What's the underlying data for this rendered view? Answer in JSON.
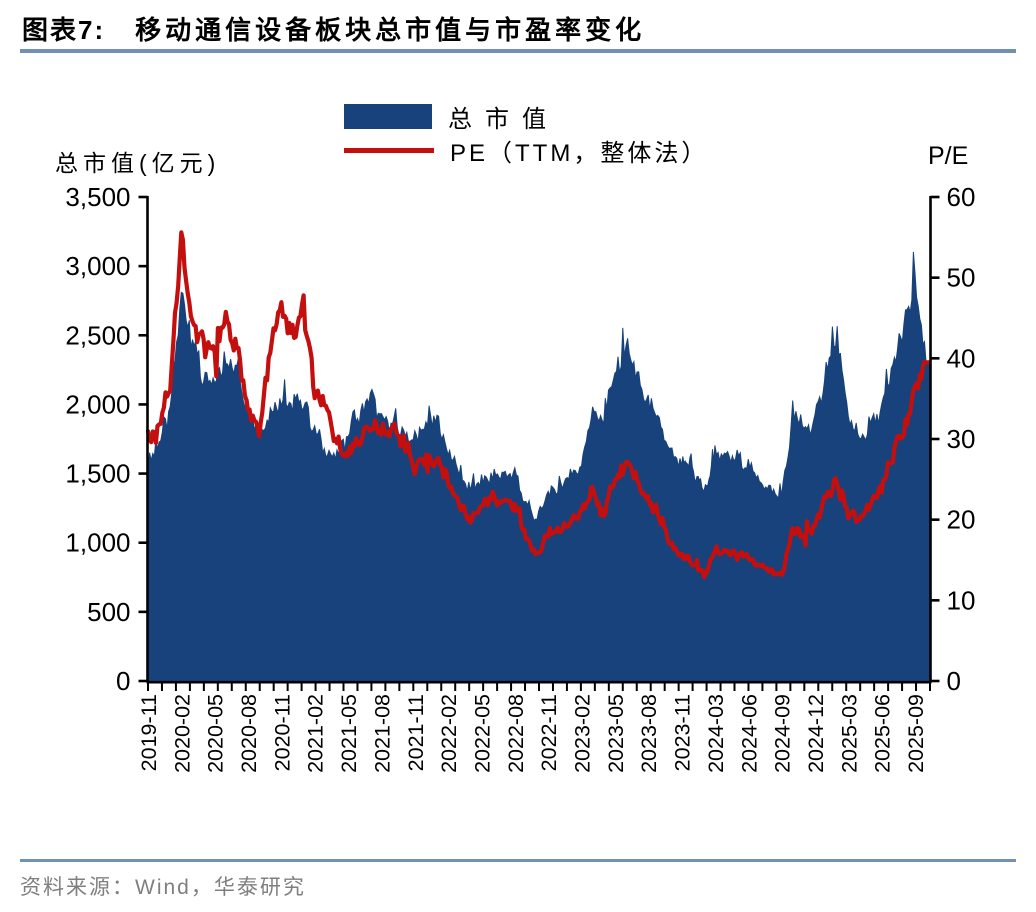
{
  "header": {
    "figure_label": "图表7:",
    "title": "移动通信设备板块总市值与市盈率变化"
  },
  "legend": {
    "items": [
      {
        "label": "总市值",
        "type": "area"
      },
      {
        "label": "PE（TTM，整体法）",
        "type": "line"
      }
    ]
  },
  "footer": {
    "source": "资料来源：Wind，华泰研究"
  },
  "chart_data": {
    "type": "combo",
    "subtypes": [
      "area",
      "line"
    ],
    "left_axis_title": "总市值(亿元)",
    "right_axis_title": "P/E",
    "grid": false,
    "legend_position": "top-center",
    "y_left": {
      "min": 0,
      "max": 3500,
      "ticks": [
        0,
        500,
        1000,
        1500,
        2000,
        2500,
        3000,
        3500
      ],
      "tick_labels": [
        "0",
        "500",
        "1,000",
        "1,500",
        "2,000",
        "2,500",
        "3,000",
        "3,500"
      ]
    },
    "y_right": {
      "min": 0,
      "max": 60,
      "ticks": [
        0,
        10,
        20,
        30,
        40,
        50,
        60
      ],
      "tick_labels": [
        "0",
        "10",
        "20",
        "30",
        "40",
        "50",
        "60"
      ]
    },
    "x_tick_labels": [
      "2019-11",
      "2020-02",
      "2020-05",
      "2020-08",
      "2020-11",
      "2021-02",
      "2021-05",
      "2021-08",
      "2021-11",
      "2022-02",
      "2022-05",
      "2022-08",
      "2022-11",
      "2023-02",
      "2023-05",
      "2023-08",
      "2023-11",
      "2024-03",
      "2024-06",
      "2024-09",
      "2024-12",
      "2025-03",
      "2025-06",
      "2025-09"
    ],
    "x_tick_month_indices": [
      0,
      3,
      6,
      9,
      12,
      15,
      18,
      21,
      24,
      27,
      30,
      33,
      36,
      39,
      42,
      45,
      48,
      52,
      55,
      58,
      61,
      64,
      67,
      70
    ],
    "months": [
      "2019-11",
      "2019-12",
      "2020-01",
      "2020-02",
      "2020-03",
      "2020-04",
      "2020-05",
      "2020-06",
      "2020-07",
      "2020-08",
      "2020-09",
      "2020-10",
      "2020-11",
      "2020-12",
      "2021-01",
      "2021-02",
      "2021-03",
      "2021-04",
      "2021-05",
      "2021-06",
      "2021-07",
      "2021-08",
      "2021-09",
      "2021-10",
      "2021-11",
      "2021-12",
      "2022-01",
      "2022-02",
      "2022-03",
      "2022-04",
      "2022-05",
      "2022-06",
      "2022-07",
      "2022-08",
      "2022-09",
      "2022-10",
      "2022-11",
      "2022-12",
      "2023-01",
      "2023-02",
      "2023-03",
      "2023-04",
      "2023-05",
      "2023-06",
      "2023-07",
      "2023-08",
      "2023-09",
      "2023-10",
      "2023-11",
      "2023-12",
      "2024-01",
      "2024-02",
      "2024-03",
      "2024-04",
      "2024-05",
      "2024-06",
      "2024-07",
      "2024-08",
      "2024-09",
      "2024-10",
      "2024-11",
      "2024-12",
      "2025-01",
      "2025-02",
      "2025-03",
      "2025-04",
      "2025-05",
      "2025-06",
      "2025-07",
      "2025-08",
      "2025-09",
      "2025-10"
    ],
    "series": [
      {
        "name": "总市值",
        "type": "area",
        "axis": "left",
        "unit": "亿元",
        "color": "#17427C",
        "values": [
          1580,
          1700,
          1950,
          2800,
          2450,
          2150,
          2160,
          2300,
          2250,
          1950,
          1780,
          1950,
          2030,
          1980,
          2020,
          1800,
          1660,
          1620,
          1780,
          1900,
          2080,
          1880,
          1850,
          1800,
          1720,
          1850,
          1890,
          1660,
          1500,
          1380,
          1430,
          1480,
          1500,
          1480,
          1280,
          1170,
          1350,
          1390,
          1480,
          1560,
          1980,
          1870,
          2200,
          2430,
          2180,
          2000,
          1860,
          1640,
          1560,
          1570,
          1450,
          1380,
          1660,
          1600,
          1620,
          1560,
          1450,
          1380,
          1320,
          1900,
          1820,
          1870,
          2250,
          2480,
          1900,
          1740,
          1850,
          1960,
          2250,
          2550,
          2870,
          2300
        ]
      },
      {
        "name": "PE（TTM，整体法）",
        "type": "line",
        "axis": "right",
        "color": "#C40F0F",
        "values": [
          30,
          32,
          37,
          55,
          44,
          42,
          40.5,
          45.5,
          41,
          34,
          30.5,
          41,
          47,
          42.5,
          46,
          36,
          33.5,
          29.5,
          28.5,
          30,
          31.5,
          31,
          31.3,
          30,
          26,
          27.5,
          27.5,
          24.8,
          22,
          19.8,
          21.9,
          22.5,
          22.3,
          21.8,
          18,
          15.5,
          18.2,
          18.8,
          19.8,
          20.8,
          23.8,
          21,
          25,
          27.3,
          25,
          22.5,
          20.5,
          17,
          15.3,
          15,
          13.8,
          13.4,
          16.3,
          15.8,
          15.9,
          15.2,
          14.2,
          13.6,
          13,
          18.8,
          18,
          19.3,
          23,
          24.6,
          21,
          19.8,
          22,
          24,
          28,
          31.5,
          36,
          39.5
        ]
      }
    ],
    "colors": {
      "area": "#17427C",
      "line": "#C40F0F",
      "rule": "#7090B4",
      "axis": "#000000",
      "footer_text": "#7F7F7F"
    }
  }
}
